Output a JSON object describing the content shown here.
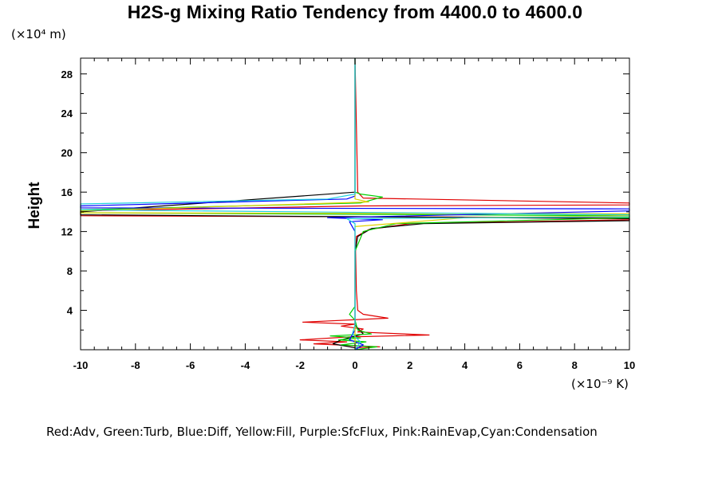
{
  "chart_data": {
    "type": "line",
    "title": "H2S-g Mixing Ratio Tendency from 4400.0 to 4600.0",
    "xlabel": "",
    "ylabel": "Height",
    "x_units": "(×10⁻⁹ K)",
    "y_units": "(×10⁴ m)",
    "xlim": [
      -10,
      10
    ],
    "ylim": [
      0,
      29.6
    ],
    "x_ticks": [
      -10,
      -8,
      -6,
      -4,
      -2,
      0,
      2,
      4,
      6,
      8,
      10
    ],
    "x_tick_labels": [
      "-10",
      "-8",
      "-6",
      "-4",
      "-2",
      "0",
      "2",
      "4",
      "6",
      "8",
      "10"
    ],
    "y_ticks": [
      4,
      8,
      12,
      16,
      20,
      24,
      28
    ],
    "y_tick_labels": [
      "4",
      "8",
      "12",
      "16",
      "20",
      "24",
      "28"
    ],
    "legend_text": "Red:Adv,  Green:Turb,  Blue:Diff,  Yellow:Fill,  Purple:SfcFlux,  Pink:RainEvap,Cyan:Condensation",
    "colors": {
      "Adv": "#e00000",
      "Adv_dark": "#000000",
      "Turb": "#00d000",
      "Diff": "#0000ff",
      "Fill": "#e0d000",
      "Condensation": "#20d0e0",
      "axis": "#000000"
    },
    "series": [
      {
        "name": "Adv",
        "color": "#e00000",
        "points": [
          [
            0,
            0.2
          ],
          [
            0.9,
            0.3
          ],
          [
            -1.5,
            0.6
          ],
          [
            -0.3,
            0.8
          ],
          [
            -2,
            1.0
          ],
          [
            -0.2,
            1.3
          ],
          [
            2.7,
            1.5
          ],
          [
            0.1,
            1.8
          ],
          [
            0.3,
            2.1
          ],
          [
            -0.5,
            2.4
          ],
          [
            0,
            2.6
          ],
          [
            -1.9,
            2.8
          ],
          [
            1.2,
            3.2
          ],
          [
            0.3,
            3.6
          ],
          [
            0.1,
            4.0
          ],
          [
            0.05,
            6
          ],
          [
            0.02,
            10
          ],
          [
            0.05,
            11.5
          ],
          [
            0.5,
            12.2
          ],
          [
            2,
            12.8
          ],
          [
            10,
            13.2
          ],
          [
            10,
            13.4
          ],
          [
            -10,
            13.6
          ],
          [
            -10,
            14.1
          ],
          [
            0.2,
            14.6
          ],
          [
            10,
            14.7
          ],
          [
            10,
            14.9
          ],
          [
            0.3,
            15.4
          ],
          [
            0.1,
            16
          ],
          [
            0,
            29.6
          ]
        ]
      },
      {
        "name": "Adv_dark",
        "color": "#000000",
        "points": [
          [
            0,
            0.2
          ],
          [
            -0.8,
            0.6
          ],
          [
            -0.5,
            1.0
          ],
          [
            0.3,
            1.6
          ],
          [
            0,
            2.5
          ],
          [
            0,
            5
          ],
          [
            0,
            7.5
          ],
          [
            0.01,
            10
          ],
          [
            0.1,
            11.5
          ],
          [
            0.6,
            12.3
          ],
          [
            2.5,
            12.8
          ],
          [
            10,
            13.1
          ],
          [
            10,
            13.3
          ],
          [
            -10,
            13.7
          ],
          [
            -10,
            14.0
          ],
          [
            0,
            16
          ],
          [
            0,
            29.6
          ]
        ]
      },
      {
        "name": "Turb",
        "color": "#00d000",
        "points": [
          [
            0,
            0
          ],
          [
            0.8,
            0.3
          ],
          [
            -0.5,
            0.5
          ],
          [
            0.4,
            0.8
          ],
          [
            -0.6,
            1.0
          ],
          [
            0.2,
            1.2
          ],
          [
            -0.9,
            1.4
          ],
          [
            0.6,
            1.6
          ],
          [
            0.1,
            2.0
          ],
          [
            0,
            3
          ],
          [
            -0.2,
            3.6
          ],
          [
            0,
            4.4
          ],
          [
            0,
            10
          ],
          [
            0.3,
            12
          ],
          [
            1.5,
            12.8
          ],
          [
            10,
            13.4
          ],
          [
            10,
            13.6
          ],
          [
            -10,
            13.9
          ],
          [
            -10,
            14.2
          ],
          [
            0.2,
            14.9
          ],
          [
            1.0,
            15.5
          ],
          [
            0.2,
            15.8
          ],
          [
            0,
            16
          ],
          [
            0,
            29.6
          ]
        ]
      },
      {
        "name": "Diff",
        "color": "#0000ff",
        "points": [
          [
            0,
            0
          ],
          [
            0.3,
            0.5
          ],
          [
            -0.2,
            1.0
          ],
          [
            0,
            2
          ],
          [
            0,
            12
          ],
          [
            -0.2,
            13.0
          ],
          [
            1,
            13.2
          ],
          [
            -1,
            13.4
          ],
          [
            10,
            14.1
          ],
          [
            10,
            14.3
          ],
          [
            -10,
            14.4
          ],
          [
            -10,
            14.6
          ],
          [
            -0.3,
            15.3
          ],
          [
            0,
            15.6
          ],
          [
            0,
            29.6
          ]
        ]
      },
      {
        "name": "Fill",
        "color": "#e0d000",
        "points": [
          [
            0,
            0
          ],
          [
            0,
            12.5
          ],
          [
            4,
            13.4
          ],
          [
            10,
            13.6
          ],
          [
            10,
            13.8
          ],
          [
            -10,
            13.9
          ],
          [
            -10,
            14.1
          ],
          [
            0.5,
            15.0
          ],
          [
            0,
            15.3
          ],
          [
            0,
            29.6
          ]
        ]
      },
      {
        "name": "Condensation",
        "color": "#20d0e0",
        "points": [
          [
            0,
            0
          ],
          [
            0.2,
            0.8
          ],
          [
            -0.1,
            1.6
          ],
          [
            0,
            2.5
          ],
          [
            0,
            12.8
          ],
          [
            -0.3,
            13.3
          ],
          [
            10,
            13.5
          ],
          [
            10,
            13.7
          ],
          [
            -10,
            14.2
          ],
          [
            -10,
            14.3
          ],
          [
            -10,
            14.8
          ],
          [
            -1,
            15.3
          ],
          [
            0,
            15.8
          ],
          [
            0,
            29.6
          ]
        ]
      }
    ]
  }
}
